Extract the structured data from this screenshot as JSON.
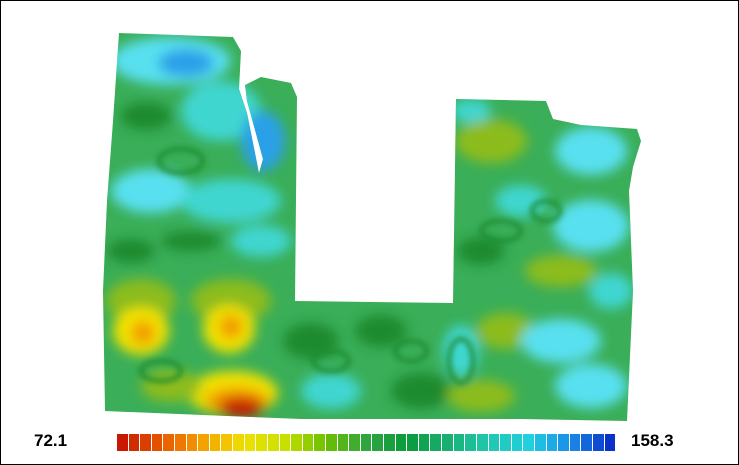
{
  "legend": {
    "min_label": "72.1",
    "max_label": "158.3",
    "min_value": 72.1,
    "max_value": 158.3,
    "swatch_count": 43,
    "color_stops": [
      "#c81800",
      "#e85a00",
      "#f4a200",
      "#f0e000",
      "#c8e000",
      "#6cc000",
      "#2ea640",
      "#0a9a3a",
      "#18b070",
      "#20c8b0",
      "#20d0e0",
      "#1a8ee8",
      "#0a32c8"
    ]
  },
  "map": {
    "field_colors": {
      "base": "#3aae58",
      "dark": "#1b8a2e",
      "olive": "#8cbc1a",
      "cyan": "#40d6d0",
      "light_cyan": "#58e0f0",
      "blue": "#2aa0e8",
      "yellow": "#f2e200",
      "orange": "#f29c00",
      "red": "#c81e00"
    }
  }
}
